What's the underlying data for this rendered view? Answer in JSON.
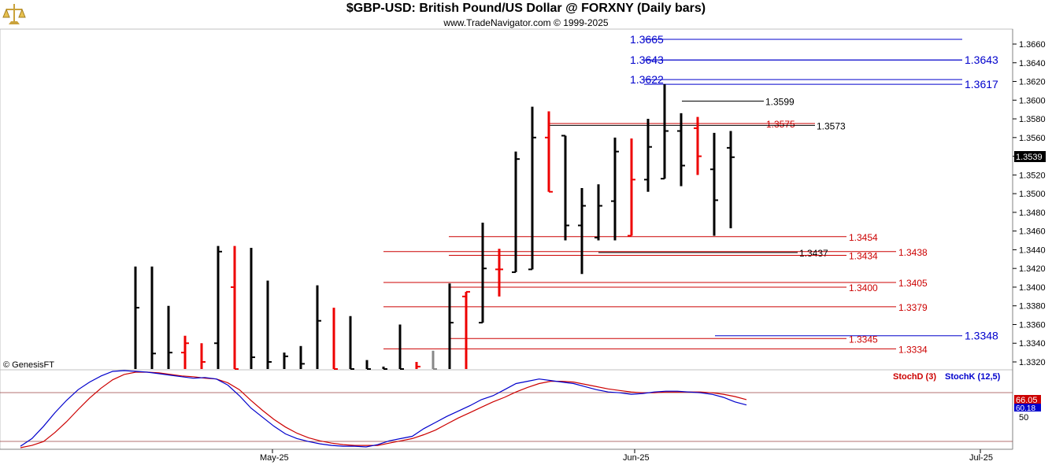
{
  "header": {
    "title": "$GBP-USD:  British Pound/US Dollar @ FORXNY  (Daily bars)",
    "subtitle": "www.TradeNavigator.com © 1999-2025"
  },
  "chart_data": {
    "type": "ohlc",
    "y_axis": {
      "min": 1.3305,
      "max": 1.3677,
      "ticks": [
        "1.3320",
        "1.3340",
        "1.3360",
        "1.3380",
        "1.3400",
        "1.3420",
        "1.3440",
        "1.3460",
        "1.3480",
        "1.3500",
        "1.3520",
        "1.3540",
        "1.3560",
        "1.3580",
        "1.3600",
        "1.3620",
        "1.3640",
        "1.3660"
      ],
      "last_price_label": "1.3539"
    },
    "x_axis": {
      "labels": [
        "May-25",
        "Jun-25",
        "Jul-25"
      ]
    },
    "watermark": "© GenesisFT",
    "bars": [
      {
        "h": 1.3422,
        "l": 1.33,
        "c": 1.3378,
        "color": "black"
      },
      {
        "h": 1.3422,
        "l": 1.33,
        "c": 1.3329,
        "color": "black"
      },
      {
        "h": 1.338,
        "l": 1.33,
        "c": 1.333,
        "color": "black"
      },
      {
        "h": 1.3348,
        "l": 1.33,
        "c": 1.334,
        "o": 1.333,
        "color": "red"
      },
      {
        "h": 1.334,
        "l": 1.33,
        "c": 1.332,
        "color": "red"
      },
      {
        "h": 1.3444,
        "l": 1.33,
        "c": 1.3438,
        "o": 1.334,
        "color": "black"
      },
      {
        "h": 1.3444,
        "l": 1.331,
        "c": 1.331,
        "o": 1.34,
        "color": "red"
      },
      {
        "h": 1.3442,
        "l": 1.33,
        "c": 1.3325,
        "color": "black"
      },
      {
        "h": 1.3407,
        "l": 1.33,
        "c": 1.332,
        "color": "black"
      },
      {
        "h": 1.333,
        "l": 1.33,
        "c": 1.3326,
        "color": "black"
      },
      {
        "h": 1.3337,
        "l": 1.33,
        "c": 1.3318,
        "color": "black"
      },
      {
        "h": 1.3402,
        "l": 1.33,
        "c": 1.3364,
        "color": "black"
      },
      {
        "h": 1.3378,
        "l": 1.33,
        "c": 1.331,
        "color": "red"
      },
      {
        "h": 1.3369,
        "l": 1.33,
        "c": 1.331,
        "color": "black"
      },
      {
        "h": 1.3322,
        "l": 1.33,
        "c": 1.331,
        "color": "black"
      },
      {
        "h": 1.3315,
        "l": 1.33,
        "c": 1.3312,
        "color": "black"
      },
      {
        "h": 1.336,
        "l": 1.33,
        "c": 1.331,
        "color": "black"
      },
      {
        "h": 1.332,
        "l": 1.33,
        "c": 1.3315,
        "color": "red"
      },
      {
        "h": 1.3332,
        "l": 1.33,
        "c": 1.331,
        "color": "gray"
      },
      {
        "h": 1.3404,
        "l": 1.33,
        "c": 1.3362,
        "color": "black"
      },
      {
        "h": 1.3395,
        "l": 1.33,
        "c": 1.3395,
        "o": 1.339,
        "color": "red"
      },
      {
        "h": 1.3469,
        "l": 1.3362,
        "c": 1.342,
        "o": 1.3362,
        "color": "black"
      },
      {
        "h": 1.3441,
        "l": 1.339,
        "c": 1.3419,
        "o": 1.3419,
        "color": "red"
      },
      {
        "h": 1.3545,
        "l": 1.3416,
        "c": 1.3537,
        "o": 1.3416,
        "color": "black"
      },
      {
        "h": 1.3593,
        "l": 1.3419,
        "c": 1.356,
        "o": 1.3419,
        "color": "black"
      },
      {
        "h": 1.3588,
        "l": 1.3502,
        "c": 1.3502,
        "o": 1.356,
        "color": "red"
      },
      {
        "h": 1.3562,
        "l": 1.345,
        "c": 1.3466,
        "o": 1.3562,
        "color": "black"
      },
      {
        "h": 1.3506,
        "l": 1.3414,
        "c": 1.3487,
        "o": 1.3466,
        "color": "black"
      },
      {
        "h": 1.351,
        "l": 1.345,
        "c": 1.3487,
        "o": 1.3453,
        "color": "black"
      },
      {
        "h": 1.356,
        "l": 1.345,
        "c": 1.3545,
        "o": 1.3492,
        "color": "black"
      },
      {
        "h": 1.3559,
        "l": 1.3455,
        "c": 1.3515,
        "o": 1.3455,
        "color": "red"
      },
      {
        "h": 1.358,
        "l": 1.3502,
        "c": 1.355,
        "o": 1.3515,
        "color": "black"
      },
      {
        "h": 1.3617,
        "l": 1.3516,
        "c": 1.3567,
        "o": 1.3516,
        "color": "black"
      },
      {
        "h": 1.3586,
        "l": 1.3508,
        "c": 1.353,
        "o": 1.3567,
        "color": "black"
      },
      {
        "h": 1.3582,
        "l": 1.352,
        "c": 1.354,
        "o": 1.357,
        "color": "red"
      },
      {
        "h": 1.3565,
        "l": 1.3455,
        "c": 1.3493,
        "o": 1.3526,
        "color": "black"
      },
      {
        "h": 1.3567,
        "l": 1.3463,
        "c": 1.3539,
        "o": 1.3549,
        "color": "black"
      }
    ],
    "levels": [
      {
        "value": 1.3665,
        "label": "1.3665",
        "color": "blue",
        "side": "left"
      },
      {
        "value": 1.3643,
        "label": "1.3643",
        "color": "blue",
        "side": "left"
      },
      {
        "value": 1.3643,
        "label": "1.3643",
        "color": "blue",
        "side": "right"
      },
      {
        "value": 1.3622,
        "label": "1.3622",
        "color": "blue",
        "side": "left"
      },
      {
        "value": 1.3617,
        "label": "1.3617",
        "color": "blue",
        "side": "right"
      },
      {
        "value": 1.3599,
        "label": "1.3599",
        "color": "black",
        "side": "mid"
      },
      {
        "value": 1.3575,
        "label": "1.3575",
        "color": "red",
        "side": "mid"
      },
      {
        "value": 1.3573,
        "label": "1.3573",
        "color": "black",
        "side": "mid"
      },
      {
        "value": 1.3454,
        "label": "1.3454",
        "color": "red",
        "side": "mid"
      },
      {
        "value": 1.3438,
        "label": "1.3438",
        "color": "red",
        "side": "right"
      },
      {
        "value": 1.3437,
        "label": "1.3437",
        "color": "black",
        "side": "mid"
      },
      {
        "value": 1.3434,
        "label": "1.3434",
        "color": "red",
        "side": "mid"
      },
      {
        "value": 1.3405,
        "label": "1.3405",
        "color": "red",
        "side": "right"
      },
      {
        "value": 1.34,
        "label": "1.3400",
        "color": "red",
        "side": "mid"
      },
      {
        "value": 1.3379,
        "label": "1.3379",
        "color": "red",
        "side": "right"
      },
      {
        "value": 1.3348,
        "label": "1.3348",
        "color": "blue",
        "side": "right"
      },
      {
        "value": 1.3345,
        "label": "1.3345",
        "color": "red",
        "side": "mid"
      },
      {
        "value": 1.3334,
        "label": "1.3334",
        "color": "red",
        "side": "right"
      }
    ],
    "stochastic": {
      "legend": [
        "StochD (3)",
        "StochK (12,5)"
      ],
      "value_labels": [
        "66.05",
        "60.18"
      ],
      "tick_label": "50",
      "k_values": [
        2,
        12,
        28,
        46,
        62,
        76,
        86,
        94,
        100,
        101,
        100,
        99,
        97,
        95,
        93,
        91,
        92,
        90,
        82,
        68,
        52,
        40,
        28,
        18,
        12,
        8,
        5,
        3,
        2,
        2,
        1,
        4,
        9,
        12,
        15,
        25,
        33,
        41,
        48,
        55,
        63,
        68,
        76,
        84,
        87,
        90,
        88,
        86,
        84,
        80,
        76,
        73,
        72,
        70,
        71,
        73,
        74,
        74,
        73,
        72,
        70,
        66,
        60,
        56
      ],
      "d_values": [
        0,
        3,
        8,
        20,
        34,
        50,
        65,
        78,
        89,
        96,
        99,
        99,
        98,
        96,
        94,
        93,
        91,
        90,
        85,
        76,
        62,
        49,
        37,
        27,
        19,
        13,
        9,
        6,
        4,
        3,
        3,
        3,
        6,
        9,
        12,
        17,
        23,
        31,
        39,
        46,
        53,
        60,
        66,
        73,
        79,
        84,
        87,
        87,
        86,
        83,
        80,
        77,
        75,
        73,
        72,
        72,
        73,
        73,
        73,
        73,
        72,
        70,
        67,
        63
      ]
    }
  }
}
